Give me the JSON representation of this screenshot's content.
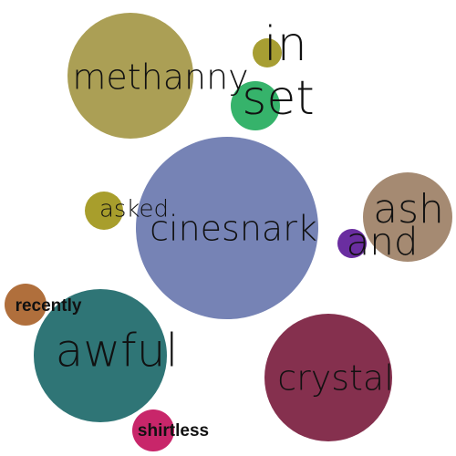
{
  "chart_data": {
    "type": "bubble",
    "bubbles": [
      {
        "word": "cinesnark",
        "size": 100,
        "color": "#7683b5"
      },
      {
        "word": "methanny",
        "size": 69,
        "color": "#ab9f55"
      },
      {
        "word": "crystal",
        "size": 70,
        "color": "#85304e"
      },
      {
        "word": "awful",
        "size": 73,
        "color": "#2f7576"
      },
      {
        "word": "ash",
        "size": 49,
        "color": "#a58a72"
      },
      {
        "word": "set",
        "size": 27,
        "color": "#36b36b"
      },
      {
        "word": "in",
        "size": 16,
        "color": "#a79e33"
      },
      {
        "word": "asked",
        "size": 21,
        "color": "#a89e2c"
      },
      {
        "word": "and",
        "size": 16,
        "color": "#6a2ea0"
      },
      {
        "word": "recently",
        "size": 23,
        "color": "#b06f3c"
      },
      {
        "word": "shirtless",
        "size": 23,
        "color": "#c8266a"
      }
    ]
  }
}
